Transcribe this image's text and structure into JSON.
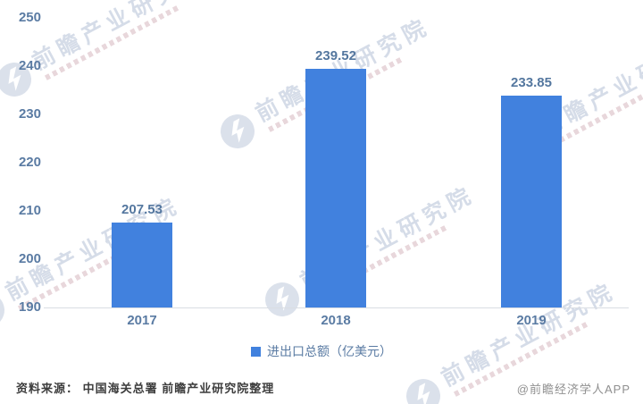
{
  "chart_data": {
    "type": "bar",
    "title": "",
    "categories": [
      "2017",
      "2018",
      "2019"
    ],
    "series": [
      {
        "name": "进出口总额（亿美元）",
        "values": [
          207.53,
          239.52,
          233.85
        ]
      }
    ],
    "data_labels": [
      "207.53",
      "239.52",
      "233.85"
    ],
    "ylim": [
      190,
      250
    ],
    "yticks": [
      250,
      240,
      230,
      220,
      210,
      200,
      190
    ],
    "grid": false,
    "legend_position": "bottom",
    "bar_color": "#4181de"
  },
  "legend": {
    "label": "进出口总额（亿美元）",
    "marker_color": "#4181de"
  },
  "footer": {
    "source": "资料来源： 中国海关总署 前瞻产业研究院整理",
    "credit": "@前瞻经济学人APP"
  },
  "watermark": {
    "text": "前瞻产业研究院"
  },
  "colors": {
    "bar": "#4181de",
    "axis_text": "#5a7ba3",
    "data_label_text": "#54779f",
    "source_text": "#3d3d3d",
    "credit_text": "#8f8f8f",
    "baseline": "#d9dde3",
    "watermark": "#b2c0d6"
  }
}
